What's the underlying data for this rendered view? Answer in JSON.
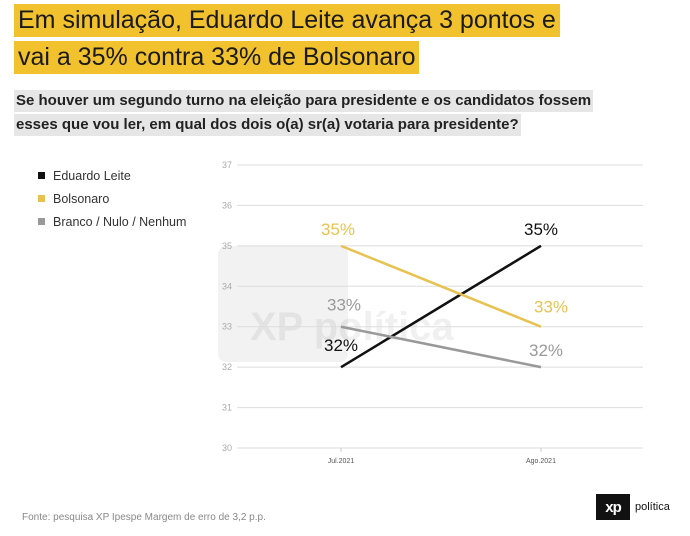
{
  "headline": {
    "line1": "Em simulação, Eduardo Leite avança 3 pontos e",
    "line2": "vai a 35% contra 33% de Bolsonaro"
  },
  "question": {
    "line1": "Se houver um segundo turno na eleição para presidente e os candidatos fossem",
    "line2": "esses que vou ler, em qual dos dois o(a) sr(a) votaria para presidente?"
  },
  "colors": {
    "accent": "#f2c12e",
    "leite": "#111111",
    "bolsonaro": "#e8c250",
    "branco": "#999999"
  },
  "chart_data": {
    "type": "line",
    "x": [
      "Jul.2021",
      "Ago.2021"
    ],
    "ylim": [
      30,
      37
    ],
    "yticks": [
      "30",
      "31",
      "32",
      "33",
      "34",
      "35",
      "36",
      "37"
    ],
    "grid": true,
    "legend_position": "top-left",
    "series": [
      {
        "name": "Eduardo Leite",
        "values": [
          32,
          35
        ],
        "labels": [
          "32%",
          "35%"
        ],
        "color": "#111111"
      },
      {
        "name": "Bolsonaro",
        "values": [
          35,
          33
        ],
        "labels": [
          "35%",
          "33%"
        ],
        "color": "#e8c250"
      },
      {
        "name": "Branco / Nulo / Nenhum",
        "values": [
          33,
          32
        ],
        "labels": [
          "33%",
          "32%"
        ],
        "color": "#999999"
      }
    ]
  },
  "watermark": {
    "text": "XP política"
  },
  "footer": {
    "source": "Fonte: pesquisa XP Ipespe Margem de erro de 3,2 p.p."
  },
  "logo": {
    "mark": "xp",
    "word": "política"
  }
}
